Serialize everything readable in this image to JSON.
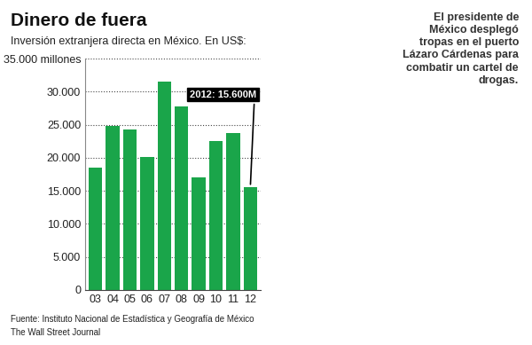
{
  "chart_data": {
    "type": "bar",
    "title": "Dinero de fuera",
    "subtitle": "Inversión extranjera directa en México. En US$:",
    "categories": [
      "03",
      "04",
      "05",
      "06",
      "07",
      "08",
      "09",
      "10",
      "11",
      "12"
    ],
    "values": [
      18500,
      24800,
      24300,
      20100,
      31500,
      27800,
      17000,
      22500,
      23700,
      15600
    ],
    "color": "#1aa54a",
    "ylim": [
      0,
      35000
    ],
    "yticks": [
      0,
      {
        "value": 5000,
        "label": "5.000"
      },
      {
        "value": 10000,
        "label": "10.000"
      },
      {
        "value": 15000,
        "label": "15.000"
      },
      {
        "value": 20000,
        "label": "20.000"
      },
      {
        "value": 25000,
        "label": "25.000"
      },
      {
        "value": 30000,
        "label": "30.000"
      },
      {
        "value": 35000,
        "label": "35.000 millones"
      }
    ],
    "grid": true,
    "annotation": "2012: 15.600M",
    "caption": [
      "El presidente de",
      "México desplegó",
      "tropas en el puerto",
      "Lázaro Cárdenas para",
      "combatir un cartel de",
      "drogas."
    ],
    "source": [
      "Fuente: Instituto Nacional de Estadística y Geografía de México",
      "The Wall Street Journal"
    ]
  }
}
